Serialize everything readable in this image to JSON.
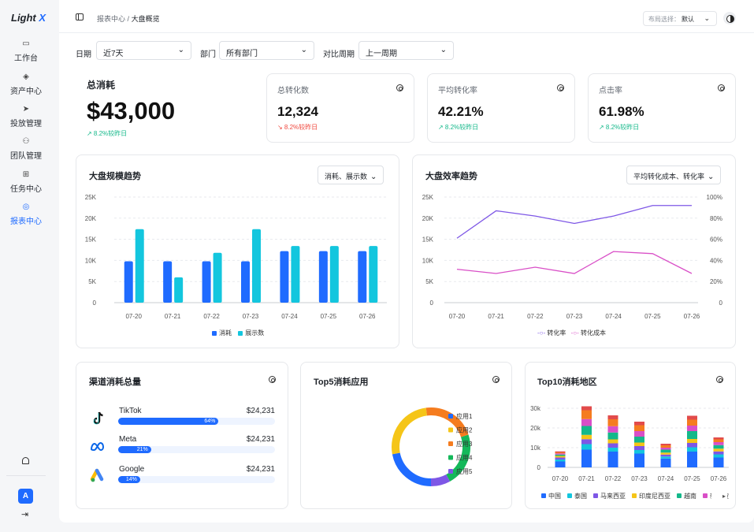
{
  "app": {
    "logo_main": "Light",
    "logo_accent": "X"
  },
  "sidebar": {
    "items": [
      {
        "label": "工作台",
        "icon": "monitor-icon",
        "active": false
      },
      {
        "label": "资产中心",
        "icon": "layers-icon",
        "active": false
      },
      {
        "label": "投放管理",
        "icon": "send-icon",
        "active": false
      },
      {
        "label": "团队管理",
        "icon": "users-icon",
        "active": false
      },
      {
        "label": "任务中心",
        "icon": "sitemap-icon",
        "active": false
      },
      {
        "label": "报表中心",
        "icon": "target-icon",
        "active": true
      }
    ],
    "avatar_letter": "A"
  },
  "topbar": {
    "crumb_parent": "报表中心",
    "crumb_sep": "/",
    "crumb_current": "大盘概览",
    "layout_label": "布局选择：",
    "layout_value": "默认"
  },
  "filters": {
    "date_label": "日期",
    "date_value": "近7天",
    "dept_label": "部门",
    "dept_value": "所有部门",
    "compare_label": "对比周期",
    "compare_value": "上一周期"
  },
  "kpis": {
    "total": {
      "title": "总消耗",
      "value": "$43,000",
      "delta": "↗ 8.2%较昨日"
    },
    "conversions": {
      "title": "总转化数",
      "value": "12,324",
      "delta": "↘ 8.2%较昨日"
    },
    "avg_cvr": {
      "title": "平均转化率",
      "value": "42.21%",
      "delta": "↗ 8.2%较昨日"
    },
    "ctr": {
      "title": "点击率",
      "value": "61.98%",
      "delta": "↗ 8.2%较昨日"
    }
  },
  "colors": {
    "accent": "#1f6bff",
    "cyan": "#13c6de",
    "purple": "#7e57e6",
    "pink": "#d94fc7",
    "up": "#14b88a",
    "down": "#f0483e"
  },
  "chart_data": [
    {
      "type": "bar",
      "title": "大盘规模趋势",
      "dropdown": "消耗、展示数",
      "categories": [
        "07-20",
        "07-21",
        "07-22",
        "07-23",
        "07-24",
        "07-25",
        "07-26"
      ],
      "series": [
        {
          "name": "消耗",
          "values": [
            9800,
            9800,
            9800,
            9800,
            12200,
            12200,
            12200
          ],
          "color": "#1f6bff"
        },
        {
          "name": "展示数",
          "values": [
            17400,
            6000,
            11800,
            17400,
            13400,
            13400,
            13400
          ],
          "color": "#13c6de"
        }
      ],
      "yticks": [
        "25K",
        "20K",
        "15K",
        "10K",
        "5K",
        "0"
      ],
      "ylim": [
        0,
        25000
      ]
    },
    {
      "type": "line",
      "title": "大盘效率趋势",
      "dropdown": "平均转化成本、转化率",
      "categories": [
        "07-20",
        "07-21",
        "07-22",
        "07-23",
        "07-24",
        "07-25",
        "07-26"
      ],
      "series": [
        {
          "name": "转化率",
          "values": [
            61,
            87,
            82,
            75,
            82,
            92,
            92
          ],
          "axis": "right",
          "color": "#7e57e6"
        },
        {
          "name": "转化成本",
          "values": [
            7900,
            6900,
            8400,
            6900,
            12100,
            11600,
            6900
          ],
          "axis": "left",
          "color": "#d94fc7"
        }
      ],
      "yticks_left": [
        "25K",
        "20K",
        "15K",
        "10K",
        "5K",
        "0"
      ],
      "yticks_right": [
        "100%",
        "80%",
        "60%",
        "40%",
        "20%",
        "0"
      ],
      "ylim": [
        0,
        25000
      ],
      "ylim_right": [
        0,
        100
      ]
    },
    {
      "type": "bar",
      "title": "渠道消耗总量",
      "categories": [
        "TikTok",
        "Meta",
        "Google"
      ],
      "amounts": [
        "$24,231",
        "$24,231",
        "$24,231"
      ],
      "values": [
        64,
        21,
        14
      ],
      "labels": [
        "64%",
        "21%",
        "14%"
      ]
    },
    {
      "type": "pie",
      "title": "Top5消耗应用",
      "categories": [
        "应用1",
        "应用2",
        "应用3",
        "应用4",
        "应用5"
      ],
      "values": [
        22,
        26,
        22,
        22,
        8
      ],
      "colors": [
        "#1f6bff",
        "#f5c518",
        "#f57c1f",
        "#14b85a",
        "#7e57e6"
      ]
    },
    {
      "type": "bar",
      "title": "Top10消耗地区",
      "categories": [
        "07-20",
        "07-21",
        "07-22",
        "07-23",
        "07-24",
        "07-25",
        "07-26"
      ],
      "stacked": true,
      "yticks": [
        "30k",
        "20k",
        "10k",
        "0"
      ],
      "ylim": [
        0,
        32000
      ],
      "series": [
        {
          "name": "中国",
          "values": [
            3000,
            9000,
            8000,
            7000,
            4500,
            8000,
            5000
          ],
          "color": "#1f6bff"
        },
        {
          "name": "泰国",
          "values": [
            1000,
            2800,
            2000,
            1800,
            1000,
            2200,
            1600
          ],
          "color": "#13c6de"
        },
        {
          "name": "马来西亚",
          "values": [
            1000,
            2500,
            2200,
            2000,
            1000,
            2200,
            1500
          ],
          "color": "#7e57e6"
        },
        {
          "name": "印度尼西亚",
          "values": [
            800,
            2200,
            2000,
            1800,
            1000,
            2000,
            1400
          ],
          "color": "#f5c518"
        },
        {
          "name": "越南",
          "values": [
            700,
            4500,
            3500,
            3000,
            1500,
            4000,
            1800
          ],
          "color": "#14b88a"
        },
        {
          "name": "新加坡",
          "values": [
            600,
            3500,
            3200,
            2800,
            1000,
            2800,
            1500
          ],
          "color": "#d94fc7"
        },
        {
          "name": "",
          "values": [
            500,
            4500,
            3500,
            3000,
            1200,
            3000,
            1400
          ],
          "color": "#f57c1f"
        },
        {
          "name": "",
          "values": [
            500,
            2000,
            2000,
            1800,
            800,
            2000,
            1000
          ],
          "color": "#e24b4b"
        }
      ],
      "legend_visible": [
        "中国",
        "泰国",
        "马来西亚",
        "印度尼西亚",
        "越南",
        "新加坡"
      ]
    }
  ]
}
